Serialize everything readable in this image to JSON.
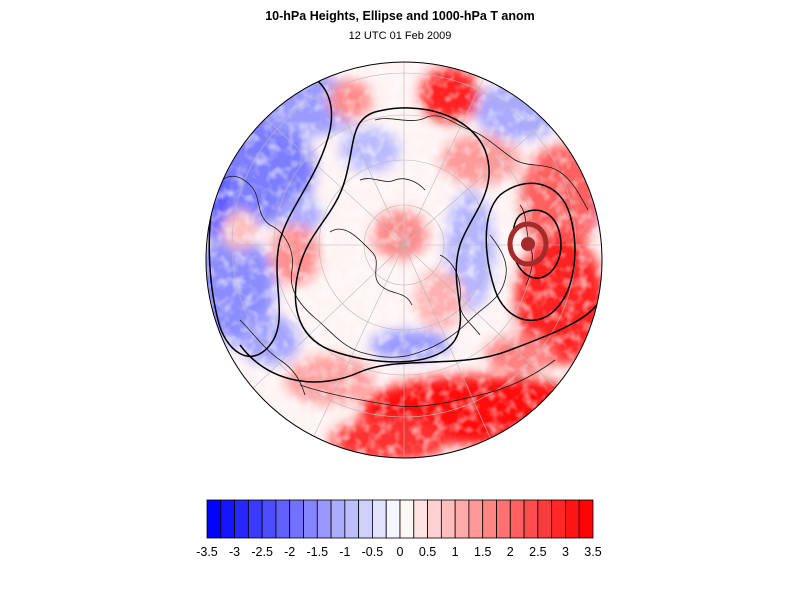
{
  "map": {
    "title": "10-hPa Heights, Ellipse and 1000-hPa T anom",
    "subtitle": "12 UTC 01 Feb 2009",
    "projection": "orthographic-north-polar",
    "colors": {
      "cold": "#0000ff",
      "neutral": "#ffffff",
      "warm": "#ff0000",
      "ellipse": "#a52a2a",
      "contour": "#000000"
    }
  },
  "colorbar": {
    "levels": [
      -3.5,
      -3.25,
      -3,
      -2.75,
      -2.5,
      -2.25,
      -2,
      -1.75,
      -1.5,
      -1.25,
      -1,
      -0.75,
      -0.5,
      -0.25,
      0,
      0.25,
      0.5,
      0.75,
      1,
      1.25,
      1.5,
      1.75,
      2,
      2.25,
      2.5,
      2.75,
      3,
      3.25,
      3.5
    ],
    "ticks": [
      {
        "value": -3.5,
        "label": "-3.5"
      },
      {
        "value": -3,
        "label": "-3"
      },
      {
        "value": -2.5,
        "label": "-2.5"
      },
      {
        "value": -2,
        "label": "-2"
      },
      {
        "value": -1.5,
        "label": "-1.5"
      },
      {
        "value": -1,
        "label": "-1"
      },
      {
        "value": -0.5,
        "label": "-0.5"
      },
      {
        "value": 0,
        "label": "0"
      },
      {
        "value": 0.5,
        "label": "0.5"
      },
      {
        "value": 1,
        "label": "1"
      },
      {
        "value": 1.5,
        "label": "1.5"
      },
      {
        "value": 2,
        "label": "2"
      },
      {
        "value": 2.5,
        "label": "2.5"
      },
      {
        "value": 3,
        "label": "3"
      },
      {
        "value": 3.5,
        "label": "3.5"
      }
    ]
  }
}
